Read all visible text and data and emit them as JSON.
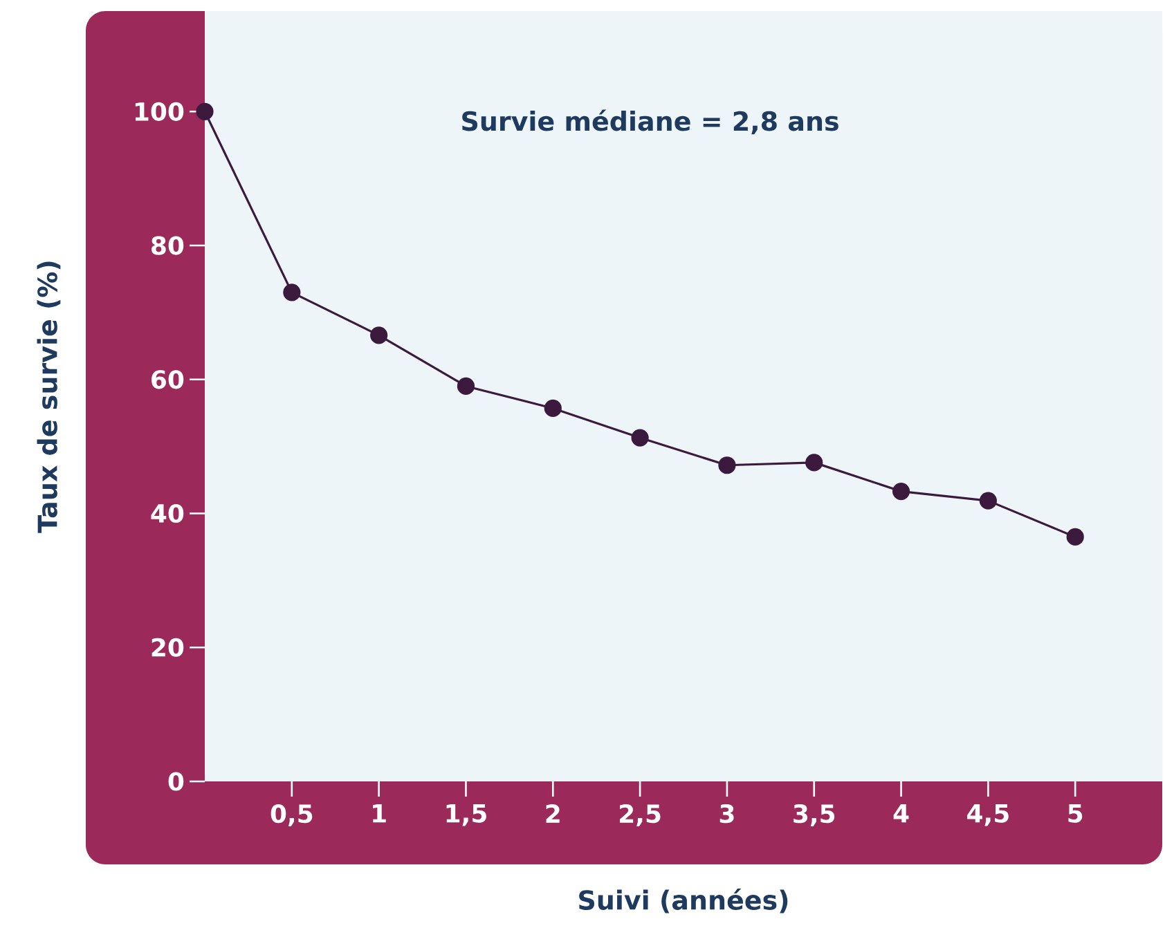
{
  "chart_data": {
    "type": "line",
    "xlabel": "Suivi (années)",
    "ylabel": "Taux de survie (%)",
    "annotations": [
      "Survie médiane = 2,8 ans"
    ],
    "x": [
      0,
      0.5,
      1,
      1.5,
      2,
      2.5,
      3,
      3.5,
      4,
      4.5,
      5
    ],
    "series": [
      {
        "color": "#3b1a3e",
        "values": [
          100,
          73,
          66.6,
          59,
          55.7,
          51.3,
          47.2,
          47.6,
          43.3,
          41.9,
          36.5
        ]
      }
    ],
    "xlim": [
      0,
      5.5
    ],
    "ylim": [
      0,
      115
    ],
    "xticks": [
      {
        "value": 0.5,
        "label": "0,5"
      },
      1,
      {
        "value": 1.5,
        "label": "1,5"
      },
      2,
      {
        "value": 2.5,
        "label": "2,5"
      },
      3,
      {
        "value": 3.5,
        "label": "3,5"
      },
      4,
      {
        "value": 4.5,
        "label": "4,5"
      },
      5
    ],
    "yticks": [
      0,
      20,
      40,
      60,
      80,
      100
    ],
    "grid": false,
    "marker": "circle",
    "line_style": "solid"
  }
}
